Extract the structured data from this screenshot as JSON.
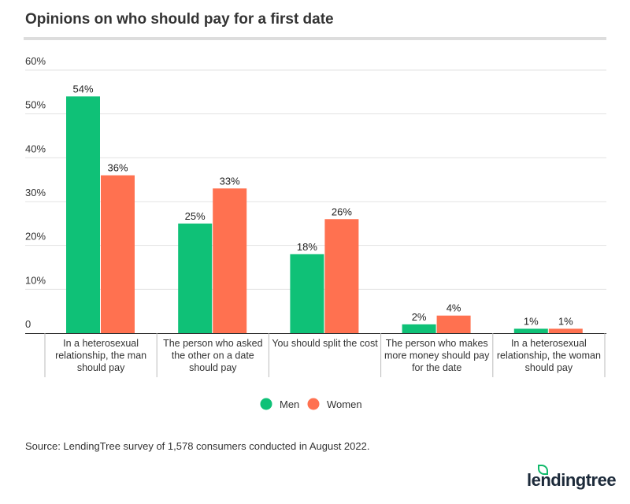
{
  "chart_data": {
    "type": "bar",
    "title": "Opinions on who should pay for a first date",
    "categories": [
      [
        "In a heterosexual",
        "relationship, the man",
        "should pay"
      ],
      [
        "The person who asked",
        "the other on a date",
        "should pay"
      ],
      [
        "You should split the cost"
      ],
      [
        "The person who makes",
        "more money should pay",
        "for the date"
      ],
      [
        "In a heterosexual",
        "relationship, the woman",
        "should pay"
      ]
    ],
    "series": [
      {
        "name": "Men",
        "color": "#0fc177",
        "values": [
          54,
          25,
          18,
          2,
          1
        ]
      },
      {
        "name": "Women",
        "color": "#ff7150",
        "values": [
          36,
          33,
          26,
          4,
          1
        ]
      }
    ],
    "ylim": [
      0,
      60
    ],
    "yticks": [
      "0",
      "10%",
      "20%",
      "30%",
      "40%",
      "50%",
      "60%"
    ],
    "grid": true,
    "legend": "bottom-center",
    "source": "Source: LendingTree survey of 1,578 consumers conducted in August 2022."
  },
  "brand": "lendingtree"
}
